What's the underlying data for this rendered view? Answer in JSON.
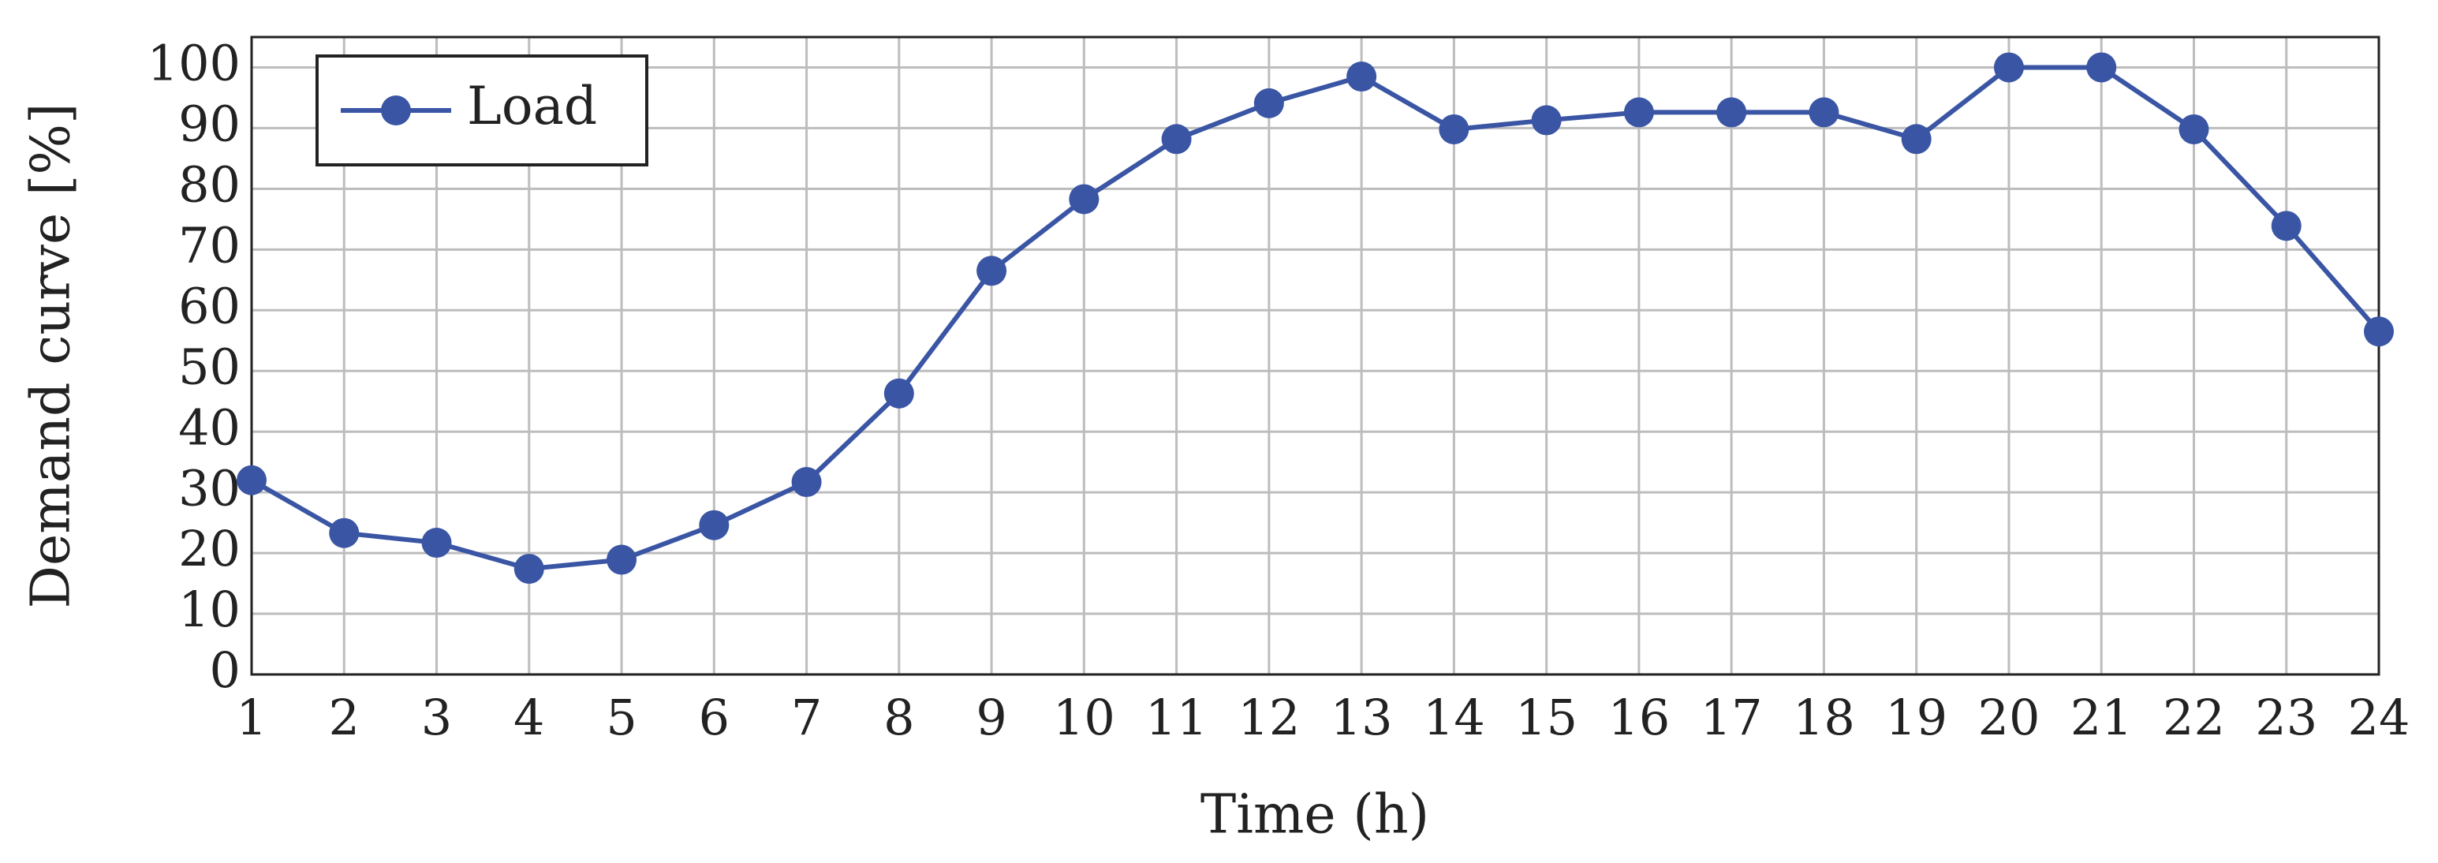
{
  "chart_data": {
    "type": "line",
    "x": [
      1,
      2,
      3,
      4,
      5,
      6,
      7,
      8,
      9,
      10,
      11,
      12,
      13,
      14,
      15,
      16,
      17,
      18,
      19,
      20,
      21,
      22,
      23,
      24
    ],
    "series": [
      {
        "name": "Load",
        "color": "#3a55a4",
        "values": [
          32,
          23.3,
          21.7,
          17.4,
          18.9,
          24.6,
          31.7,
          46.3,
          66.5,
          78.3,
          88.2,
          94.1,
          98.5,
          89.8,
          91.3,
          92.6,
          92.6,
          92.6,
          88.2,
          100,
          100,
          89.8,
          73.9,
          56.5
        ]
      }
    ],
    "xlabel": "Time (h)",
    "ylabel": "Demand curve [%]",
    "xlim": [
      1,
      24
    ],
    "xticks": [
      1,
      2,
      3,
      4,
      5,
      6,
      7,
      8,
      9,
      10,
      11,
      12,
      13,
      14,
      15,
      16,
      17,
      18,
      19,
      20,
      21,
      22,
      23,
      24
    ],
    "ylim": [
      0,
      105
    ],
    "yticks": [
      0,
      10,
      20,
      30,
      40,
      50,
      60,
      70,
      80,
      90,
      100
    ],
    "grid": true,
    "legend": "upper left"
  }
}
